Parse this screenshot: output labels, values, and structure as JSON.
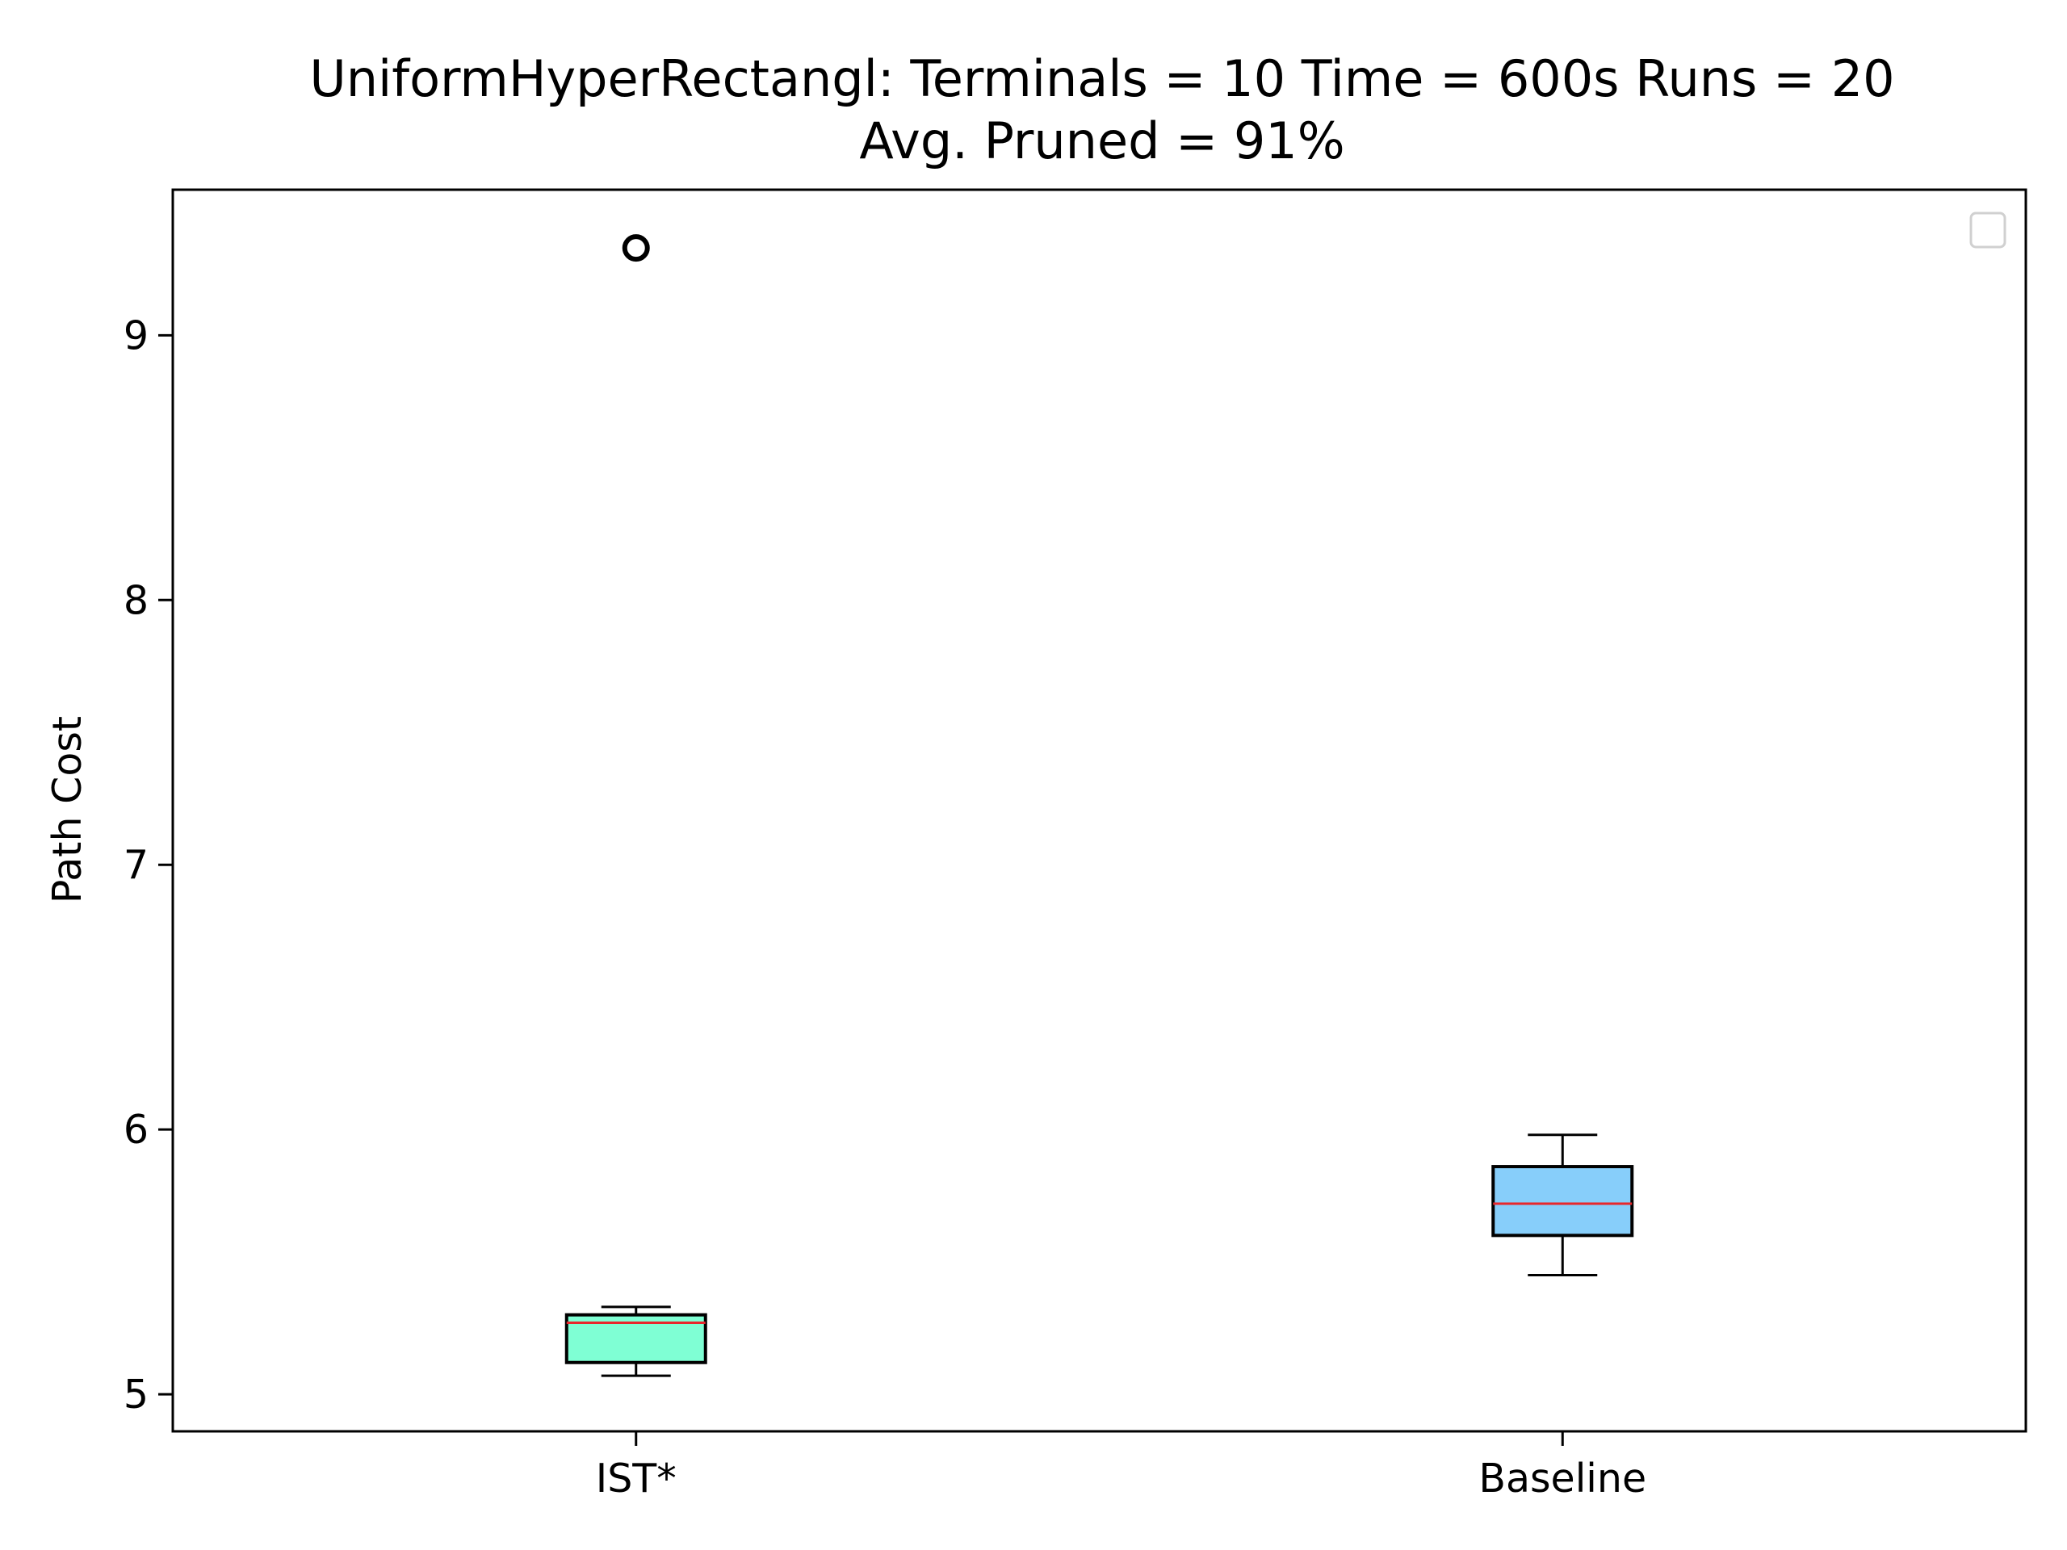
{
  "chart_data": {
    "type": "box",
    "title_line1": "UniformHyperRectangl:  Terminals = 10  Time = 600s  Runs = 20",
    "title_line2": "Avg. Pruned = 91%",
    "xlabel": "",
    "ylabel": "Path Cost",
    "ylim": [
      4.86,
      9.55
    ],
    "yticks": [
      5,
      6,
      7,
      8,
      9
    ],
    "categories": [
      "IST*",
      "Baseline"
    ],
    "boxes": [
      {
        "label": "IST*",
        "whisker_low": 5.07,
        "q1": 5.12,
        "median": 5.27,
        "q3": 5.3,
        "whisker_high": 5.33,
        "fliers": [
          9.33
        ],
        "color": "#7fffd4"
      },
      {
        "label": "Baseline",
        "whisker_low": 5.45,
        "q1": 5.6,
        "median": 5.72,
        "q3": 5.86,
        "whisker_high": 5.98,
        "fliers": [],
        "color": "#87cefa"
      }
    ],
    "median_color": "#e8262b",
    "grid": false,
    "legend": {
      "placement": "top-right",
      "entries": []
    }
  }
}
